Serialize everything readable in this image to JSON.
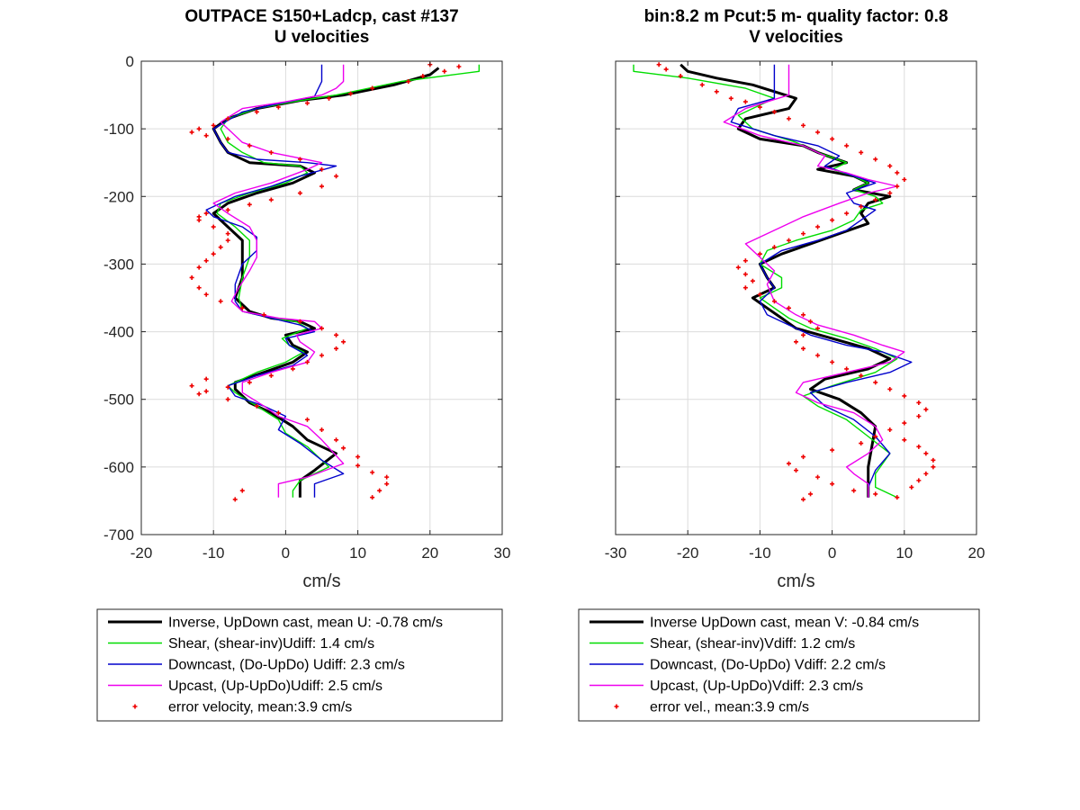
{
  "chart_data": [
    {
      "type": "line",
      "title": [
        "OUTPACE S150+Ladcp, cast #137",
        "U velocities"
      ],
      "xlabel": "cm/s",
      "ylabel": "",
      "xlim": [
        -20,
        30
      ],
      "ylim": [
        -700,
        0
      ],
      "xticks": [
        -20,
        -10,
        0,
        10,
        20,
        30
      ],
      "yticks": [
        0,
        -100,
        -200,
        -300,
        -400,
        -500,
        -600,
        -700
      ],
      "grid": true,
      "series": [
        {
          "name": "Inverse, UpDown cast, mean U:  -0.78 cm/s",
          "color": "#000000",
          "width": 3,
          "x": [
            21.2,
            20.0,
            15.0,
            8.0,
            2.0,
            -4.0,
            -8.0,
            -10.0,
            -9.0,
            -8.0,
            -5.0,
            2.0,
            4.0,
            1.0,
            -4.0,
            -8.0,
            -10.0,
            -8.0,
            -6.0,
            -6.0,
            -6.0,
            -7.0,
            -5.0,
            -2.0,
            2.0,
            4.0,
            0.0,
            1.0,
            3.0,
            1.0,
            -3.0,
            -7.0,
            -7.0,
            -5.0,
            -2.0,
            1.0,
            3.0,
            7.0,
            4.0,
            2.0,
            2.0
          ],
          "y": [
            -10,
            -20,
            -35,
            -50,
            -58,
            -70,
            -85,
            -100,
            -120,
            -135,
            -150,
            -155,
            -165,
            -180,
            -195,
            -210,
            -225,
            -245,
            -265,
            -290,
            -320,
            -350,
            -370,
            -380,
            -385,
            -395,
            -405,
            -420,
            -430,
            -445,
            -460,
            -475,
            -485,
            -505,
            -520,
            -540,
            -560,
            -580,
            -605,
            -620,
            -645
          ]
        },
        {
          "name": "Shear, (shear-inv)Udiff:  1.4 cm/s",
          "color": "#00dd00",
          "width": 1.4,
          "x": [
            26.8,
            26.8,
            16.0,
            7.0,
            1.0,
            -4.0,
            -8.0,
            -9.0,
            -8.0,
            -6.0,
            -3.0,
            2.0,
            3.0,
            0.0,
            -5.0,
            -9.0,
            -9.5,
            -7.0,
            -5.0,
            -5.0,
            -6.0,
            -6.5,
            -6.0,
            -2.0,
            1.5,
            3.0,
            -0.5,
            0.5,
            2.5,
            0.0,
            -4.0,
            -8.0,
            -7.0,
            -4.0,
            -1.0,
            0.0,
            3.0,
            6.0,
            2.0,
            1.0,
            1.0
          ],
          "y": [
            -5,
            -15,
            -30,
            -50,
            -60,
            -70,
            -85,
            -100,
            -120,
            -135,
            -150,
            -155,
            -165,
            -180,
            -195,
            -210,
            -225,
            -245,
            -265,
            -290,
            -320,
            -350,
            -370,
            -380,
            -385,
            -395,
            -410,
            -420,
            -430,
            -445,
            -460,
            -480,
            -490,
            -510,
            -530,
            -550,
            -570,
            -600,
            -620,
            -635,
            -645
          ]
        },
        {
          "name": "Downcast, (Do-UpDo) Udiff:  2.3 cm/s",
          "color": "#0000cc",
          "width": 1.4,
          "x": [
            5.0,
            5.0,
            4.0,
            -2.0,
            -6.0,
            -10.0,
            -9.0,
            -8.0,
            -4.0,
            3.0,
            7.0,
            2.0,
            -2.0,
            -7.0,
            -11.0,
            -10.0,
            -6.0,
            -4.0,
            -4.0,
            -6.0,
            -7.0,
            -7.0,
            -6.0,
            -2.0,
            2.0,
            4.0,
            0.0,
            0.5,
            3.0,
            1.0,
            -4.0,
            -8.0,
            -7.0,
            -3.0,
            0.0,
            -1.0,
            2.0,
            5.0,
            8.0,
            4.0,
            4.0
          ],
          "y": [
            -5,
            -30,
            -52,
            -65,
            -75,
            -100,
            -120,
            -135,
            -145,
            -150,
            -155,
            -170,
            -185,
            -200,
            -220,
            -230,
            -245,
            -260,
            -280,
            -300,
            -330,
            -355,
            -370,
            -380,
            -390,
            -400,
            -410,
            -420,
            -435,
            -450,
            -465,
            -480,
            -495,
            -510,
            -525,
            -545,
            -565,
            -590,
            -610,
            -625,
            -645
          ]
        },
        {
          "name": "Upcast, (Up-UpDo)Udiff:  2.5 cm/s",
          "color": "#ee00ee",
          "width": 1.4,
          "x": [
            8.0,
            8.0,
            7.0,
            5.0,
            0.0,
            -6.0,
            -9.0,
            -8.0,
            -6.0,
            -2.0,
            5.0,
            3.0,
            -2.0,
            -7.0,
            -10.0,
            -8.0,
            -5.0,
            -4.0,
            -4.0,
            -5.0,
            -6.5,
            -7.5,
            -6.0,
            -1.0,
            4.0,
            5.0,
            1.5,
            2.0,
            4.0,
            3.0,
            -2.0,
            -6.0,
            -6.0,
            -3.0,
            -1.0,
            3.0,
            5.0,
            8.0,
            3.0,
            -1.0,
            -1.0
          ],
          "y": [
            -5,
            -30,
            -40,
            -50,
            -60,
            -70,
            -90,
            -100,
            -120,
            -135,
            -150,
            -160,
            -180,
            -195,
            -210,
            -225,
            -245,
            -265,
            -290,
            -310,
            -335,
            -355,
            -370,
            -380,
            -385,
            -395,
            -405,
            -415,
            -430,
            -445,
            -460,
            -475,
            -490,
            -510,
            -525,
            -540,
            -560,
            -595,
            -615,
            -625,
            -645
          ]
        }
      ],
      "error_points": {
        "name": "error velocity, mean:3.9 cm/s",
        "color": "#ee0000",
        "x": [
          24,
          22,
          19,
          20,
          17,
          12,
          9,
          6,
          3,
          -1,
          -4,
          -8,
          -10,
          -12,
          -13,
          -11,
          -8,
          -5,
          -2,
          2,
          5,
          7,
          5,
          2,
          -2,
          -5,
          -8,
          -11,
          -12,
          -12,
          -10,
          -8,
          -8,
          -9,
          -10,
          -11,
          -12,
          -13,
          -12,
          -11,
          -9,
          -6,
          -3,
          2,
          5,
          7,
          8,
          7,
          5,
          3,
          1,
          -2,
          -5,
          -8,
          -11,
          -12,
          -13,
          -11,
          -8,
          -4,
          -1,
          3,
          5,
          7,
          8,
          10,
          10,
          12,
          14,
          14,
          13,
          12,
          -6,
          -7
        ],
        "y": [
          -8,
          -15,
          -22,
          -5,
          -30,
          -40,
          -48,
          -55,
          -62,
          -68,
          -75,
          -85,
          -95,
          -100,
          -105,
          -110,
          -115,
          -125,
          -135,
          -145,
          -160,
          -170,
          -185,
          -195,
          -205,
          -212,
          -220,
          -225,
          -230,
          -235,
          -245,
          -255,
          -265,
          -275,
          -285,
          -295,
          -305,
          -320,
          -335,
          -345,
          -355,
          -365,
          -375,
          -385,
          -395,
          -405,
          -415,
          -425,
          -435,
          -445,
          -455,
          -465,
          -475,
          -482,
          -488,
          -492,
          -480,
          -470,
          -500,
          -510,
          -520,
          -530,
          -545,
          -560,
          -572,
          -585,
          -598,
          -608,
          -615,
          -625,
          -635,
          -645,
          -635,
          -648
        ]
      }
    },
    {
      "type": "line",
      "title": [
        "bin:8.2 m  Pcut:5 m- quality factor:  0.8",
        "V velocities"
      ],
      "xlabel": "cm/s",
      "ylabel": "",
      "xlim": [
        -30,
        20
      ],
      "ylim": [
        -700,
        0
      ],
      "xticks": [
        -30,
        -20,
        -10,
        0,
        10,
        20
      ],
      "yticks": [
        0,
        -100,
        -200,
        -300,
        -400,
        -500,
        -600,
        -700
      ],
      "grid": true,
      "series": [
        {
          "name": "Inverse UpDown cast, mean V:  -0.84 cm/s",
          "color": "#000000",
          "width": 3,
          "x": [
            -21.0,
            -20.0,
            -16.0,
            -11.0,
            -5.0,
            -6.0,
            -12.0,
            -13.0,
            -10.0,
            -4.0,
            -2.0,
            2.0,
            -2.0,
            3.0,
            5.0,
            3.0,
            8.0,
            5.0,
            4.0,
            5.0,
            1.0,
            -3.0,
            -7.0,
            -10.0,
            -9.0,
            -8.0,
            -11.0,
            -9.0,
            -7.0,
            -5.0,
            0.0,
            5.0,
            8.0,
            5.0,
            -1.0,
            -3.0,
            1.0,
            4.0,
            6.0,
            5.0,
            5.0
          ],
          "y": [
            -5,
            -15,
            -25,
            -35,
            -55,
            -70,
            -85,
            -100,
            -115,
            -125,
            -135,
            -150,
            -160,
            -170,
            -180,
            -190,
            -200,
            -210,
            -225,
            -240,
            -255,
            -270,
            -285,
            -300,
            -320,
            -335,
            -350,
            -365,
            -380,
            -395,
            -410,
            -425,
            -440,
            -455,
            -470,
            -485,
            -500,
            -520,
            -540,
            -600,
            -645
          ]
        },
        {
          "name": "Shear, (shear-inv)Vdiff:  1.2 cm/s",
          "color": "#00dd00",
          "width": 1.4,
          "x": [
            -27.5,
            -27.5,
            -20.0,
            -12.0,
            -8.0,
            -13.0,
            -11.0,
            -5.0,
            -2.0,
            2.0,
            0.0,
            3.0,
            5.0,
            3.0,
            6.0,
            7.0,
            4.0,
            3.0,
            0.0,
            -5.0,
            -9.0,
            -10.0,
            -7.0,
            -7.0,
            -10.0,
            -8.0,
            -6.0,
            -3.0,
            2.0,
            6.0,
            9.0,
            6.0,
            0.0,
            -4.0,
            -2.0,
            2.0,
            5.0,
            8.0,
            6.0,
            6.0,
            9.0
          ],
          "y": [
            -5,
            -15,
            -25,
            -40,
            -55,
            -80,
            -100,
            -120,
            -135,
            -150,
            -160,
            -170,
            -180,
            -190,
            -200,
            -210,
            -220,
            -235,
            -250,
            -265,
            -280,
            -300,
            -320,
            -335,
            -350,
            -365,
            -380,
            -395,
            -410,
            -425,
            -440,
            -460,
            -480,
            -495,
            -510,
            -530,
            -555,
            -580,
            -610,
            -630,
            -645
          ]
        },
        {
          "name": "Downcast, (Do-UpDo) Vdiff:  2.2 cm/s",
          "color": "#0000cc",
          "width": 1.4,
          "x": [
            -8.0,
            -8.0,
            -8.0,
            -13.0,
            -14.0,
            -8.0,
            -2.0,
            1.0,
            -1.0,
            3.0,
            6.0,
            2.0,
            3.0,
            6.0,
            4.0,
            2.0,
            -2.0,
            -7.0,
            -10.0,
            -9.0,
            -8.0,
            -10.0,
            -9.0,
            -6.0,
            -3.0,
            2.0,
            7.0,
            11.0,
            8.0,
            2.0,
            -3.0,
            -1.0,
            3.0,
            6.0,
            8.0,
            6.0,
            5.0,
            5.0
          ],
          "y": [
            -5,
            -30,
            -55,
            -70,
            -90,
            -110,
            -125,
            -140,
            -155,
            -170,
            -180,
            -195,
            -210,
            -220,
            -235,
            -250,
            -265,
            -280,
            -300,
            -320,
            -335,
            -355,
            -375,
            -390,
            -405,
            -420,
            -430,
            -445,
            -460,
            -475,
            -490,
            -510,
            -530,
            -555,
            -580,
            -605,
            -630,
            -645
          ]
        },
        {
          "name": "Upcast, (Up-UpDo)Vdiff:  2.3 cm/s",
          "color": "#ee00ee",
          "width": 1.4,
          "x": [
            -6.0,
            -6.0,
            -6.0,
            -12.0,
            -15.0,
            -10.0,
            -4.0,
            -1.0,
            -2.0,
            2.0,
            5.0,
            9.0,
            5.0,
            1.0,
            -4.0,
            -8.0,
            -12.0,
            -10.0,
            -8.0,
            -9.0,
            -8.0,
            -5.0,
            -2.0,
            3.0,
            7.0,
            10.0,
            8.0,
            2.0,
            -4.0,
            -5.0,
            -2.0,
            3.0,
            6.0,
            7.0,
            5.0,
            2.0,
            3.0,
            5.0,
            5.0
          ],
          "y": [
            -5,
            -30,
            -50,
            -70,
            -90,
            -110,
            -125,
            -140,
            -155,
            -165,
            -175,
            -185,
            -195,
            -210,
            -230,
            -250,
            -270,
            -290,
            -310,
            -330,
            -355,
            -375,
            -390,
            -405,
            -420,
            -430,
            -445,
            -460,
            -475,
            -490,
            -505,
            -520,
            -540,
            -560,
            -580,
            -600,
            -610,
            -625,
            -645
          ]
        }
      ],
      "error_points": {
        "name": "error vel., mean:3.9 cm/s",
        "color": "#ee0000",
        "x": [
          -24,
          -23,
          -21,
          -18,
          -16,
          -14,
          -12,
          -10,
          -8,
          -6,
          -4,
          -2,
          0,
          2,
          4,
          6,
          8,
          9,
          10,
          9,
          8,
          6,
          4,
          2,
          0,
          -2,
          -4,
          -6,
          -8,
          -10,
          -12,
          -13,
          -12,
          -11,
          -12,
          -10,
          -8,
          -6,
          -4,
          -3,
          -2,
          -4,
          -5,
          -4,
          -2,
          0,
          2,
          4,
          6,
          8,
          10,
          12,
          13,
          12,
          10,
          8,
          6,
          4,
          0,
          -4,
          -6,
          -5,
          -2,
          0,
          3,
          6,
          9,
          11,
          12,
          13,
          14,
          14,
          13,
          12,
          10,
          -3,
          -4
        ],
        "y": [
          -5,
          -12,
          -22,
          -35,
          -45,
          -55,
          -60,
          -68,
          -75,
          -85,
          -95,
          -105,
          -115,
          -125,
          -135,
          -145,
          -155,
          -165,
          -175,
          -185,
          -195,
          -205,
          -215,
          -225,
          -235,
          -245,
          -255,
          -265,
          -275,
          -285,
          -295,
          -305,
          -315,
          -325,
          -335,
          -345,
          -355,
          -365,
          -375,
          -385,
          -395,
          -405,
          -415,
          -425,
          -435,
          -445,
          -455,
          -465,
          -475,
          -485,
          -495,
          -505,
          -515,
          -525,
          -535,
          -545,
          -555,
          -565,
          -575,
          -585,
          -595,
          -605,
          -615,
          -625,
          -635,
          -640,
          -645,
          -630,
          -620,
          -610,
          -600,
          -590,
          -580,
          -570,
          -560,
          -640,
          -648
        ]
      }
    }
  ]
}
